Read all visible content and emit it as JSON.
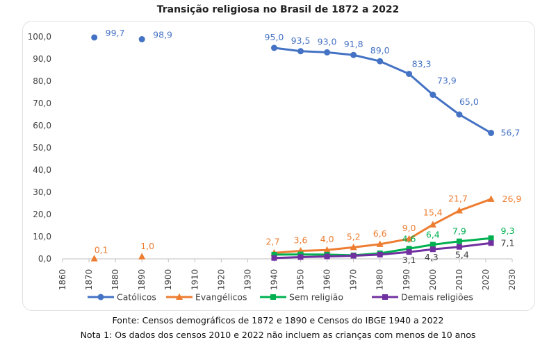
{
  "chart_data": {
    "type": "line",
    "title": "Transição religiosa no Brasil de 1872 a 2022",
    "xlim": [
      1860,
      2030
    ],
    "ylim": [
      0,
      100
    ],
    "x_ticks": [
      "1860",
      "1870",
      "1880",
      "1890",
      "1900",
      "1910",
      "1920",
      "1930",
      "1940",
      "1950",
      "1960",
      "1970",
      "1980",
      "1990",
      "2000",
      "2010",
      "2020",
      "2030"
    ],
    "y_ticks": [
      "0,0",
      "10,0",
      "20,0",
      "30,0",
      "40,0",
      "50,0",
      "60,0",
      "70,0",
      "80,0",
      "90,0",
      "100,0"
    ],
    "legend_position": "bottom",
    "grid": false,
    "series": [
      {
        "name": "Católicos",
        "color": "#4472C4",
        "marker": "circle",
        "points": [
          {
            "x": 1872,
            "y": 99.7,
            "label": "99,7"
          },
          {
            "x": 1890,
            "y": 98.9,
            "label": "98,9"
          },
          {
            "x": 1940,
            "y": 95.0,
            "label": "95,0"
          },
          {
            "x": 1950,
            "y": 93.5,
            "label": "93,5"
          },
          {
            "x": 1960,
            "y": 93.0,
            "label": "93,0"
          },
          {
            "x": 1970,
            "y": 91.8,
            "label": "91,8"
          },
          {
            "x": 1980,
            "y": 89.0,
            "label": "89,0"
          },
          {
            "x": 1991,
            "y": 83.3,
            "label": "83,3"
          },
          {
            "x": 2000,
            "y": 73.9,
            "label": "73,9"
          },
          {
            "x": 2010,
            "y": 65.0,
            "label": "65,0"
          },
          {
            "x": 2022,
            "y": 56.7,
            "label": "56,7"
          }
        ]
      },
      {
        "name": "Evangélicos",
        "color": "#ED7D31",
        "marker": "triangle",
        "points": [
          {
            "x": 1872,
            "y": 0.1,
            "label": "0,1"
          },
          {
            "x": 1890,
            "y": 1.0,
            "label": "1,0"
          },
          {
            "x": 1940,
            "y": 2.7,
            "label": "2,7"
          },
          {
            "x": 1950,
            "y": 3.6,
            "label": "3,6"
          },
          {
            "x": 1960,
            "y": 4.0,
            "label": "4,0"
          },
          {
            "x": 1970,
            "y": 5.2,
            "label": "5,2"
          },
          {
            "x": 1980,
            "y": 6.6,
            "label": "6,6"
          },
          {
            "x": 1991,
            "y": 9.0,
            "label": "9,0"
          },
          {
            "x": 2000,
            "y": 15.4,
            "label": "15,4"
          },
          {
            "x": 2010,
            "y": 21.7,
            "label": "21,7"
          },
          {
            "x": 2022,
            "y": 26.9,
            "label": "26,9"
          }
        ]
      },
      {
        "name": "Sem religião",
        "color": "#00B050",
        "marker": "square",
        "points": [
          {
            "x": 1940,
            "y": 1.9
          },
          {
            "x": 1950,
            "y": 2.0
          },
          {
            "x": 1960,
            "y": 1.9
          },
          {
            "x": 1970,
            "y": 1.6
          },
          {
            "x": 1980,
            "y": 2.5
          },
          {
            "x": 1991,
            "y": 4.6,
            "label": "4,6"
          },
          {
            "x": 2000,
            "y": 6.4,
            "label": "6,4"
          },
          {
            "x": 2010,
            "y": 7.9,
            "label": "7,9"
          },
          {
            "x": 2022,
            "y": 9.3,
            "label": "9,3"
          }
        ]
      },
      {
        "name": "Demais religiões",
        "color": "#7030A0",
        "marker": "square",
        "points": [
          {
            "x": 1940,
            "y": 0.4
          },
          {
            "x": 1950,
            "y": 0.8
          },
          {
            "x": 1960,
            "y": 1.1
          },
          {
            "x": 1970,
            "y": 1.4
          },
          {
            "x": 1980,
            "y": 1.9
          },
          {
            "x": 1991,
            "y": 3.1,
            "label": "3,1"
          },
          {
            "x": 2000,
            "y": 4.3,
            "label": "4,3"
          },
          {
            "x": 2010,
            "y": 5.4,
            "label": "5,4"
          },
          {
            "x": 2022,
            "y": 7.1,
            "label": "7,1"
          }
        ]
      }
    ]
  },
  "footnotes": {
    "source": "Fonte: Censos demográficos de 1872 e 1890 e Censos do IBGE 1940 a 2022",
    "note1": "Nota 1: Os dados dos censos 2010 e 2022 não incluem as crianças com menos de 10 anos"
  }
}
